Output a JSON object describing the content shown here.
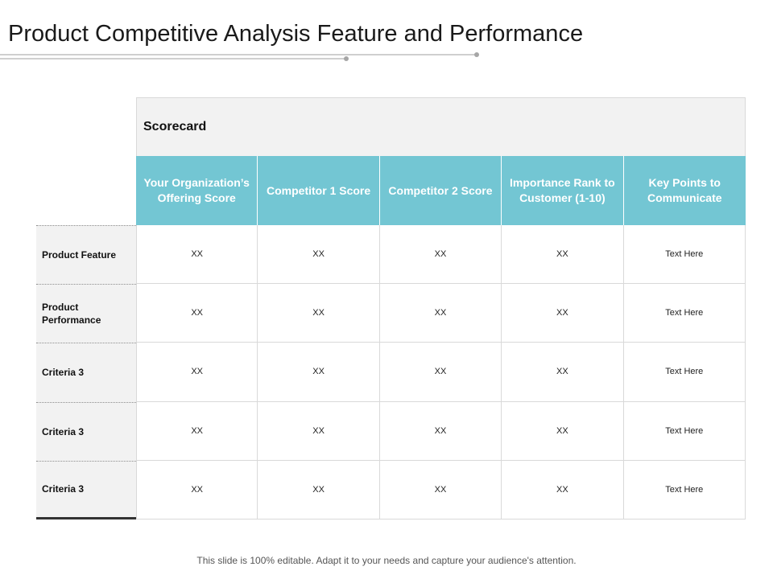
{
  "title": "Product Competitive Analysis Feature and Performance",
  "table": {
    "scorecard_label": "Scorecard",
    "columns": [
      "Your Organization’s Offering Score",
      "Competitor 1 Score",
      "Competitor 2 Score",
      "Importance Rank to Customer (1-10)",
      "Key Points to Communicate"
    ],
    "rows": [
      {
        "label": "Product Feature",
        "cells": [
          "XX",
          "XX",
          "XX",
          "XX",
          "Text Here"
        ]
      },
      {
        "label": "Product Performance",
        "cells": [
          "XX",
          "XX",
          "XX",
          "XX",
          "Text Here"
        ]
      },
      {
        "label": "Criteria 3",
        "cells": [
          "XX",
          "XX",
          "XX",
          "XX",
          "Text Here"
        ]
      },
      {
        "label": "Criteria 3",
        "cells": [
          "XX",
          "XX",
          "XX",
          "XX",
          "Text Here"
        ]
      },
      {
        "label": "Criteria 3",
        "cells": [
          "XX",
          "XX",
          "XX",
          "XX",
          "Text Here"
        ]
      }
    ]
  },
  "footer": "This slide is 100% editable. Adapt it to your needs and capture your audience's attention.",
  "colors": {
    "header_teal": "#73c6d3",
    "light_gray": "#f2f2f2",
    "border_gray": "#d9d9d9"
  }
}
